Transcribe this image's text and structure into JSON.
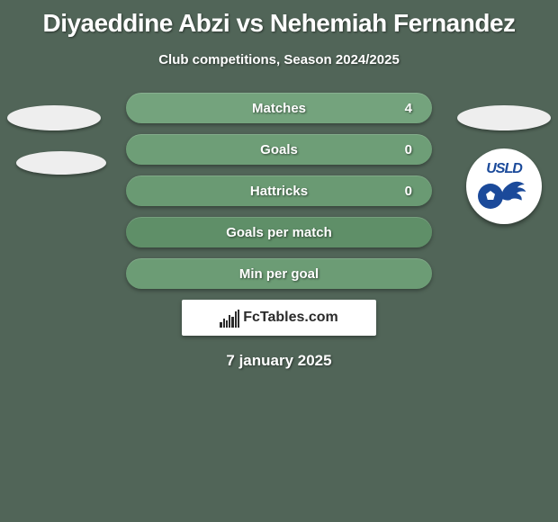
{
  "title": "Diyaeddine Abzi vs Nehemiah Fernandez",
  "subtitle": "Club competitions, Season 2024/2025",
  "date": "7 january 2025",
  "colors": {
    "background": "#516558",
    "bar_fill": "#6ea078",
    "text": "#ffffff",
    "fctables_bg": "#ffffff",
    "fctables_text": "#2b2b2b",
    "crest_text": "#1b4a9a"
  },
  "crest": {
    "text": "USLD"
  },
  "bars": [
    {
      "label": "Matches",
      "value": "4",
      "tone": "a"
    },
    {
      "label": "Goals",
      "value": "0",
      "tone": "b"
    },
    {
      "label": "Hattricks",
      "value": "0",
      "tone": "c"
    },
    {
      "label": "Goals per match",
      "value": "",
      "tone": "d"
    },
    {
      "label": "Min per goal",
      "value": "",
      "tone": "e"
    }
  ],
  "fctables": {
    "text": "FcTables.com",
    "icon_heights": [
      6,
      10,
      8,
      14,
      12,
      18,
      20
    ]
  }
}
